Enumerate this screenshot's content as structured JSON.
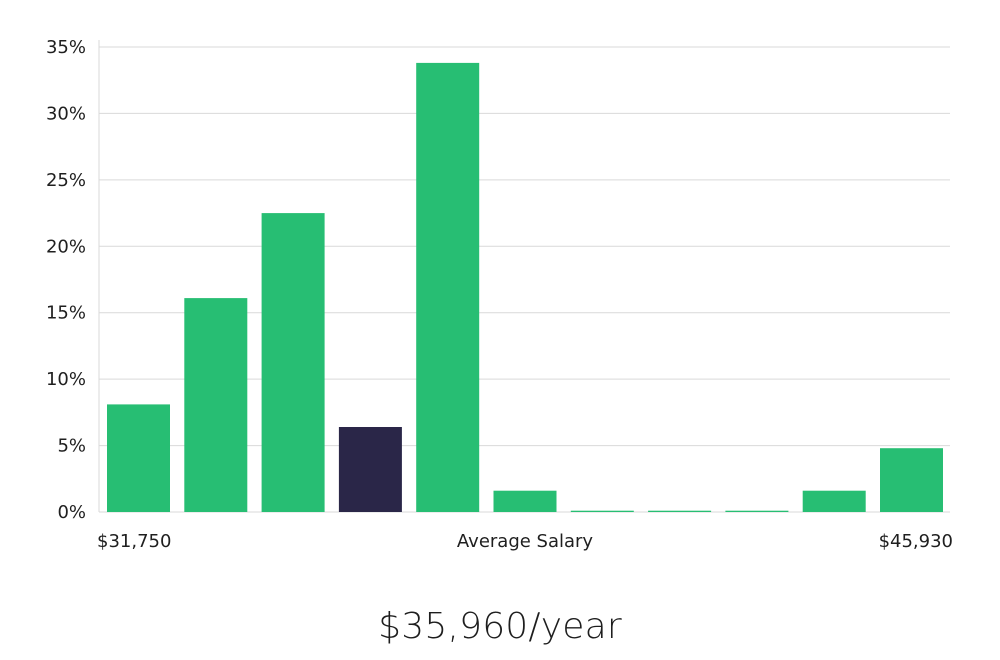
{
  "colors": {
    "bar": "#27be73",
    "highlight": "#2a2648",
    "grid": "#d9d9d9"
  },
  "chart_data": {
    "type": "bar",
    "title": "",
    "xlabel": "Average Salary",
    "ylabel": "",
    "x_min_label": "$31,750",
    "x_max_label": "$45,930",
    "y_ticks": [
      "0%",
      "5%",
      "10%",
      "15%",
      "20%",
      "25%",
      "30%",
      "35%"
    ],
    "ylim": [
      0,
      35
    ],
    "values": [
      8.1,
      16.1,
      22.5,
      6.4,
      33.8,
      1.6,
      0.1,
      0.1,
      0.1,
      1.6,
      4.8
    ],
    "highlight_index": 3,
    "grid": true
  },
  "summary": {
    "salary_text": "$35,960/year"
  }
}
